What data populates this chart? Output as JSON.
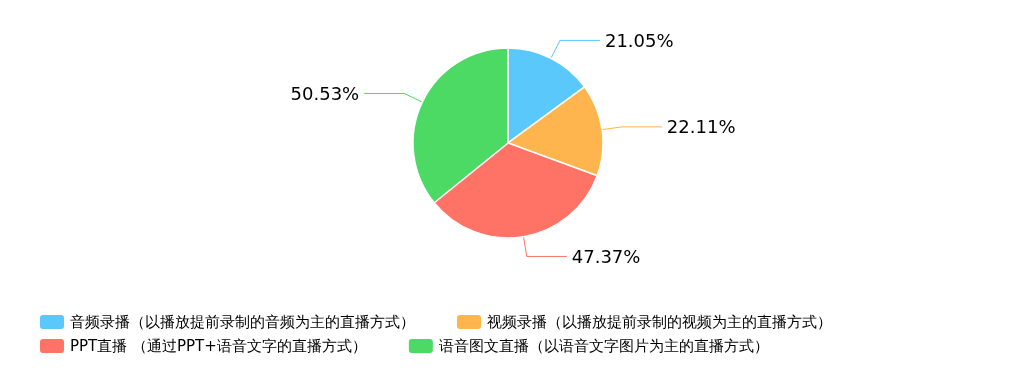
{
  "chart_data": {
    "type": "pie",
    "categories": [
      "音频录播（以播放提前录制的音频为主的直播方式）",
      "视频录播（以播放提前录制的视频为主的直播方式）",
      "PPT直播 （通过PPT+语音文字的直播方式）",
      "语音图文直播（以语音文字图片为主的直播方式）"
    ],
    "values": [
      21.05,
      22.11,
      47.37,
      50.53
    ],
    "colors": [
      "#5ac8fa",
      "#ffb54d",
      "#ff7366",
      "#4cd964"
    ],
    "value_labels": [
      "21.05%",
      "22.11%",
      "47.37%",
      "50.53%"
    ],
    "legend": "bottom"
  }
}
